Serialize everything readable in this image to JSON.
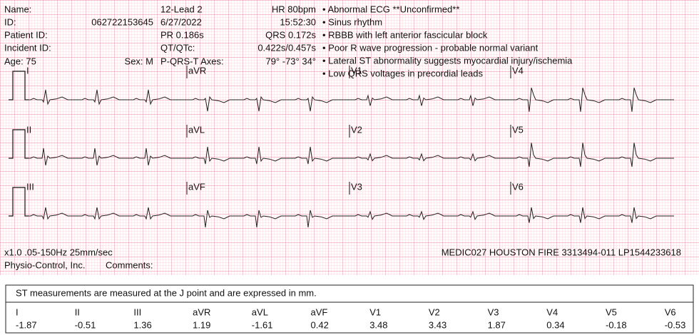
{
  "header": {
    "name_label": "Name:",
    "id_label": "ID:",
    "id": "062722153645",
    "patient_id_label": "Patient ID:",
    "incident_id_label": "Incident ID:",
    "age": "Age: 75",
    "sex": "Sex: M",
    "report": "12-Lead 2",
    "date": "6/27/2022",
    "pr": "PR 0.186s",
    "qt_label": "QT/QTc:",
    "axes_label": "P-QRS-T Axes:",
    "hr": "HR 80bpm",
    "time": "15:52:30",
    "qrs": "QRS 0.172s",
    "qt": "0.422s/0.457s",
    "axes": "79° -73° 34°"
  },
  "statements": [
    "• Abnormal ECG **Unconfirmed**",
    "• Sinus rhythm",
    "• RBBB with left anterior fascicular block",
    "• Poor R wave progression - probable normal variant",
    "• Lateral ST abnormality suggests myocardial injury/ischemia",
    "• Low QRS voltages in precordial leads"
  ],
  "leads": [
    [
      "I",
      "aVR",
      "V1",
      "V4"
    ],
    [
      "II",
      "aVL",
      "V2",
      "V5"
    ],
    [
      "III",
      "aVF",
      "V3",
      "V6"
    ]
  ],
  "footer": {
    "settings": "x1.0 .05-150Hz 25mm/sec",
    "device": "MEDIC027 HOUSTON FIRE 3313494-011 LP1544233618",
    "maker": "Physio-Control, Inc.",
    "comments": "Comments:"
  },
  "st_table": {
    "note": "ST measurements are measured at the J point and are expressed in mm.",
    "leads": [
      "I",
      "II",
      "III",
      "aVR",
      "aVL",
      "aVF",
      "V1",
      "V2",
      "V3",
      "V4",
      "V5",
      "V6"
    ],
    "values": [
      -1.87,
      -0.51,
      1.36,
      1.19,
      -1.61,
      0.42,
      3.48,
      3.43,
      1.87,
      0.34,
      -0.18,
      -0.53
    ]
  }
}
